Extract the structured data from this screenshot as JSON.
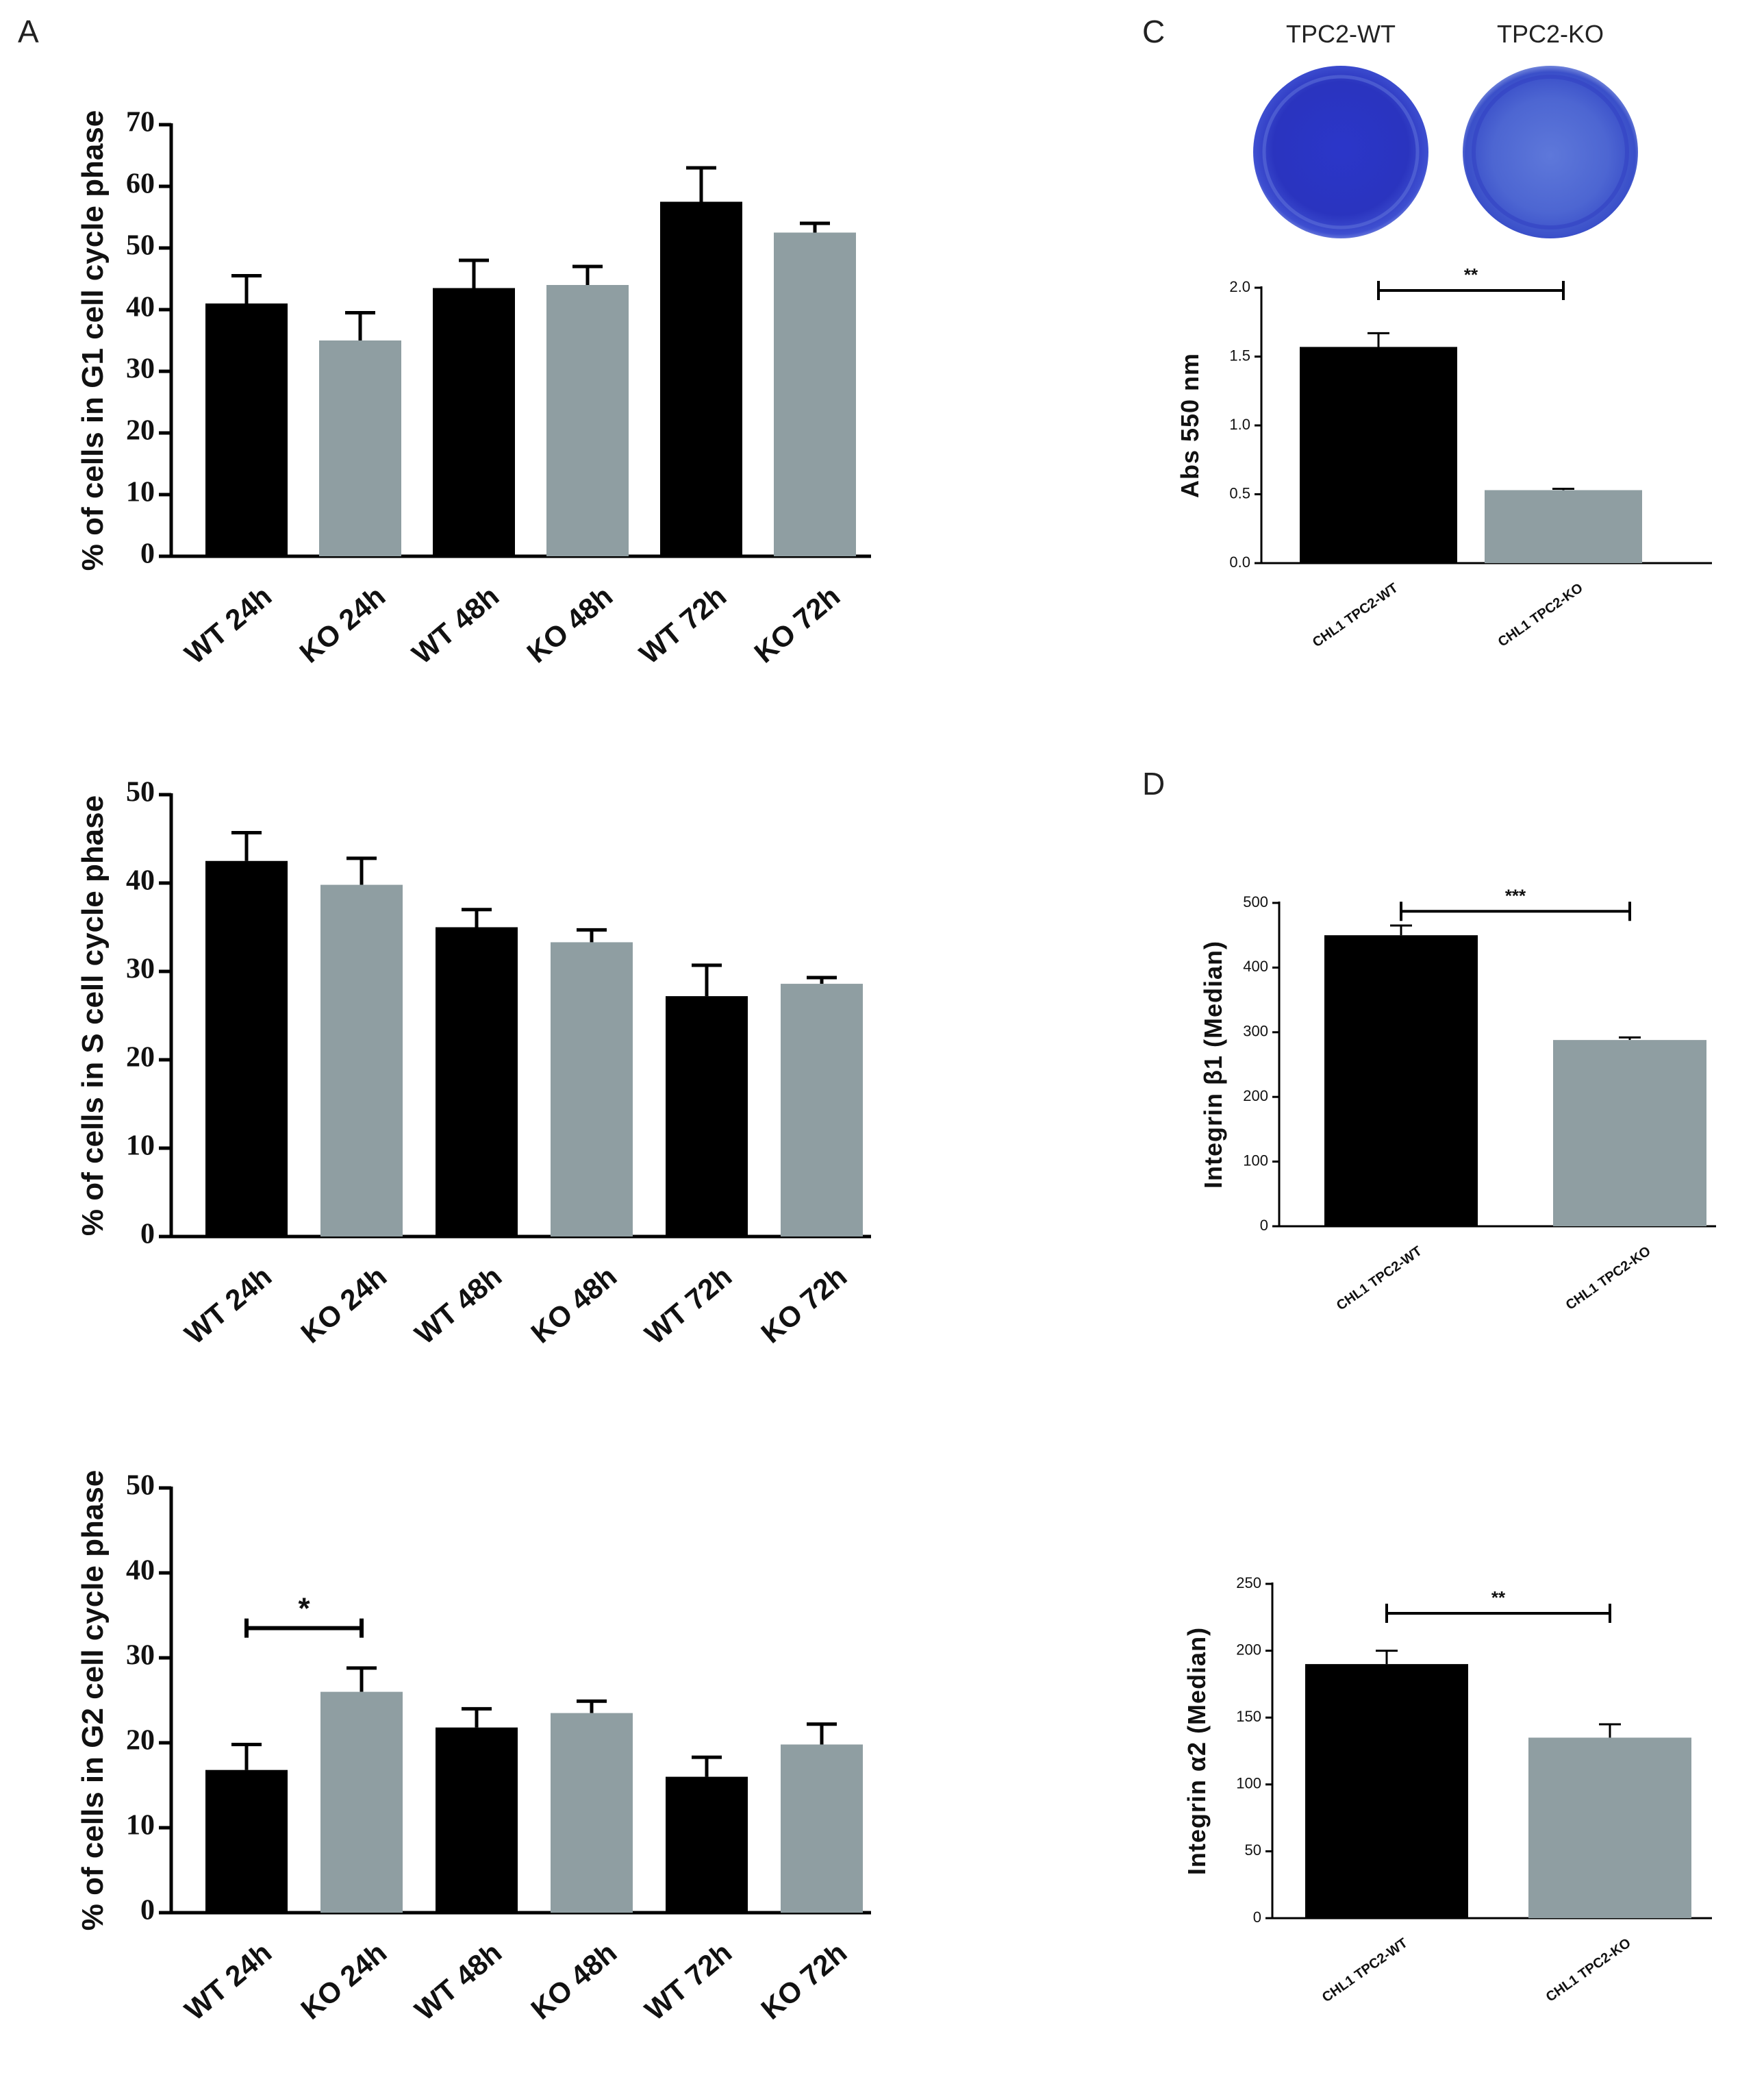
{
  "panels": {
    "A": "A",
    "C": "C",
    "D": "D"
  },
  "dish_labels": [
    "TPC2-WT",
    "TPC2-KO"
  ],
  "colors": {
    "wt": "#000000",
    "ko": "#8f9ea2",
    "stain_dark": "#2a35c8",
    "stain_light": "#5a6fd8"
  },
  "chart_data": [
    {
      "id": "g1",
      "type": "bar",
      "title": "",
      "ylabel": "% of cells in G1 cell cycle phase",
      "xlabel": "",
      "categories": [
        "WT 24h",
        "KO 24h",
        "WT 48h",
        "KO 48h",
        "WT 72h",
        "KO 72h"
      ],
      "values": [
        41,
        35,
        43.5,
        44,
        57.5,
        52.5
      ],
      "errors": [
        4.5,
        4.5,
        4.5,
        3,
        5.5,
        1.5
      ],
      "groups": [
        "wt",
        "ko",
        "wt",
        "ko",
        "wt",
        "ko"
      ],
      "ylim": [
        0,
        70
      ],
      "yticks": [
        0,
        10,
        20,
        30,
        40,
        50,
        60,
        70
      ],
      "significance": []
    },
    {
      "id": "s",
      "type": "bar",
      "title": "",
      "ylabel": "% of cells in S cell cycle phase",
      "xlabel": "",
      "categories": [
        "WT 24h",
        "KO 24h",
        "WT 48h",
        "KO 48h",
        "WT 72h",
        "KO 72h"
      ],
      "values": [
        42.5,
        39.8,
        35,
        33.3,
        27.2,
        28.6
      ],
      "errors": [
        3.2,
        3,
        2,
        1.4,
        3.5,
        0.7
      ],
      "groups": [
        "wt",
        "ko",
        "wt",
        "ko",
        "wt",
        "ko"
      ],
      "ylim": [
        0,
        50
      ],
      "yticks": [
        0,
        10,
        20,
        30,
        40,
        50
      ],
      "significance": []
    },
    {
      "id": "g2",
      "type": "bar",
      "title": "",
      "ylabel": "% of cells in G2 cell cycle phase",
      "xlabel": "",
      "categories": [
        "WT 24h",
        "KO 24h",
        "WT 48h",
        "KO 48h",
        "WT 72h",
        "KO 72h"
      ],
      "values": [
        16.8,
        26,
        21.8,
        23.5,
        16,
        19.8
      ],
      "errors": [
        3,
        2.8,
        2.2,
        1.4,
        2.3,
        2.4
      ],
      "groups": [
        "wt",
        "ko",
        "wt",
        "ko",
        "wt",
        "ko"
      ],
      "ylim": [
        0,
        50
      ],
      "yticks": [
        0,
        10,
        20,
        30,
        40,
        50
      ],
      "significance": [
        {
          "from": 0,
          "to": 1,
          "level": 33.5,
          "label": "*"
        }
      ]
    },
    {
      "id": "abs",
      "type": "bar",
      "title": "",
      "ylabel": "Abs 550 nm",
      "xlabel": "",
      "categories": [
        "CHL1 TPC2-WT",
        "CHL1 TPC2-KO"
      ],
      "values": [
        1.57,
        0.53
      ],
      "errors": [
        0.1,
        0.01
      ],
      "groups": [
        "wt",
        "ko"
      ],
      "ylim": [
        0,
        2.0
      ],
      "yticks": [
        0.0,
        0.5,
        1.0,
        1.5,
        2.0
      ],
      "ytick_labels": [
        "0.0",
        "0.5",
        "1.0",
        "1.5",
        "2.0"
      ],
      "significance": [
        {
          "from": 0,
          "to": 1,
          "level": 1.98,
          "label": "**"
        }
      ]
    },
    {
      "id": "itgb1",
      "type": "bar",
      "title": "",
      "ylabel": "Integrin β1 (Median)",
      "xlabel": "",
      "categories": [
        "CHL1 TPC2-WT",
        "CHL1 TPC2-KO"
      ],
      "values": [
        450,
        288
      ],
      "errors": [
        15,
        4
      ],
      "groups": [
        "wt",
        "ko"
      ],
      "ylim": [
        0,
        500
      ],
      "yticks": [
        0,
        100,
        200,
        300,
        400,
        500
      ],
      "significance": [
        {
          "from": 0,
          "to": 1,
          "level": 487,
          "label": "***"
        }
      ]
    },
    {
      "id": "itga2",
      "type": "bar",
      "title": "",
      "ylabel": "Integrin α2 (Median)",
      "xlabel": "",
      "categories": [
        "CHL1 TPC2-WT",
        "CHL1 TPC2-KO"
      ],
      "values": [
        190,
        135
      ],
      "errors": [
        10,
        10
      ],
      "groups": [
        "wt",
        "ko"
      ],
      "ylim": [
        0,
        250
      ],
      "yticks": [
        0,
        50,
        100,
        150,
        200,
        250
      ],
      "significance": [
        {
          "from": 0,
          "to": 1,
          "level": 228,
          "label": "**"
        }
      ]
    }
  ]
}
